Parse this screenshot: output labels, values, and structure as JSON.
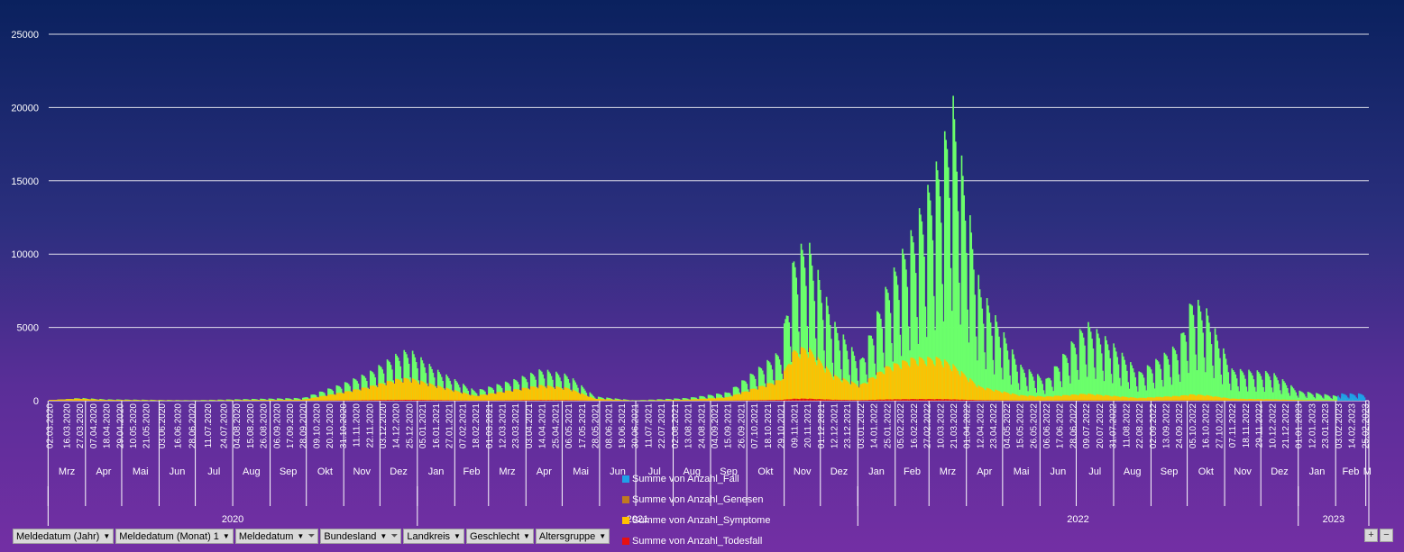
{
  "chart_data": {
    "type": "bar",
    "stacked": true,
    "ylim": [
      0,
      25000
    ],
    "yticks": [
      0,
      5000,
      10000,
      15000,
      20000,
      25000
    ],
    "grid": true,
    "series": [
      {
        "name": "Summe von Anzahl_Fall",
        "color": "#1fa0e8"
      },
      {
        "name": "Summe von Anzahl_Genesen",
        "color": "#6bff6b"
      },
      {
        "name": "Summe von Anzahl_Symptome",
        "color": "#ffc000"
      },
      {
        "name": "Summe von Anzahl_Todesfall",
        "color": "#e81010"
      }
    ],
    "date_range": [
      "02.03.2020",
      "25.02.2023"
    ],
    "envelope": [
      {
        "date": "02.03.2020",
        "genesen": 0,
        "symptome": 50
      },
      {
        "date": "27.03.2020",
        "genesen": 200,
        "symptome": 150
      },
      {
        "date": "18.04.2020",
        "genesen": 100,
        "symptome": 60
      },
      {
        "date": "28.06.2020",
        "genesen": 40,
        "symptome": 20
      },
      {
        "date": "28.09.2020",
        "genesen": 200,
        "symptome": 80
      },
      {
        "date": "31.10.2020",
        "genesen": 1200,
        "symptome": 600
      },
      {
        "date": "22.11.2020",
        "genesen": 2000,
        "symptome": 1000
      },
      {
        "date": "14.12.2020",
        "genesen": 3200,
        "symptome": 1500
      },
      {
        "date": "25.12.2020",
        "genesen": 3600,
        "symptome": 1600
      },
      {
        "date": "16.01.2021",
        "genesen": 2200,
        "symptome": 1100
      },
      {
        "date": "18.02.2021",
        "genesen": 700,
        "symptome": 350
      },
      {
        "date": "23.03.2021",
        "genesen": 1500,
        "symptome": 800
      },
      {
        "date": "14.04.2021",
        "genesen": 2200,
        "symptome": 1100
      },
      {
        "date": "06.05.2021",
        "genesen": 1800,
        "symptome": 900
      },
      {
        "date": "28.05.2021",
        "genesen": 300,
        "symptome": 150
      },
      {
        "date": "30.06.2021",
        "genesen": 30,
        "symptome": 15
      },
      {
        "date": "13.08.2021",
        "genesen": 200,
        "symptome": 80
      },
      {
        "date": "15.09.2021",
        "genesen": 600,
        "symptome": 250
      },
      {
        "date": "29.10.2021",
        "genesen": 3500,
        "symptome": 1500
      },
      {
        "date": "09.11.2021",
        "genesen": 10000,
        "symptome": 3500
      },
      {
        "date": "20.11.2021",
        "genesen": 11300,
        "symptome": 3800
      },
      {
        "date": "12.12.2021",
        "genesen": 5500,
        "symptome": 1800
      },
      {
        "date": "03.01.2022",
        "genesen": 2800,
        "symptome": 1100
      },
      {
        "date": "25.01.2022",
        "genesen": 8000,
        "symptome": 2400
      },
      {
        "date": "16.02.2022",
        "genesen": 12000,
        "symptome": 3000
      },
      {
        "date": "10.03.2022",
        "genesen": 17000,
        "symptome": 3000
      },
      {
        "date": "21.03.2022",
        "genesen": 20800,
        "symptome": 2500
      },
      {
        "date": "12.04.2022",
        "genesen": 8000,
        "symptome": 1000
      },
      {
        "date": "15.05.2022",
        "genesen": 2500,
        "symptome": 400
      },
      {
        "date": "06.06.2022",
        "genesen": 1500,
        "symptome": 300
      },
      {
        "date": "09.07.2022",
        "genesen": 5500,
        "symptome": 500
      },
      {
        "date": "31.07.2022",
        "genesen": 4000,
        "symptome": 350
      },
      {
        "date": "22.08.2022",
        "genesen": 2000,
        "symptome": 200
      },
      {
        "date": "24.09.2022",
        "genesen": 4000,
        "symptome": 350
      },
      {
        "date": "05.10.2022",
        "genesen": 7200,
        "symptome": 450
      },
      {
        "date": "16.10.2022",
        "genesen": 6500,
        "symptome": 400
      },
      {
        "date": "07.11.2022",
        "genesen": 2200,
        "symptome": 150
      },
      {
        "date": "10.12.2022",
        "genesen": 2000,
        "symptome": 100
      },
      {
        "date": "01.01.2023",
        "genesen": 700,
        "symptome": 50
      },
      {
        "date": "14.02.2023",
        "genesen": 200,
        "symptome": 20
      },
      {
        "date": "25.02.2023",
        "genesen": 0,
        "symptome": 0
      }
    ],
    "fall_tail": {
      "from": "03.02.2023",
      "to": "25.02.2023",
      "value": 500
    },
    "xtick_labels": [
      "02.03.2020",
      "16.03.2020",
      "27.03.2020",
      "07.04.2020",
      "18.04.2020",
      "29.04.2020",
      "10.05.2020",
      "21.05.2020",
      "03.06.2020",
      "16.06.2020",
      "28.06.2020",
      "11.07.2020",
      "24.07.2020",
      "04.08.2020",
      "15.08.2020",
      "26.08.2020",
      "06.09.2020",
      "17.09.2020",
      "28.09.2020",
      "09.10.2020",
      "20.10.2020",
      "31.10.2020",
      "11.11.2020",
      "22.11.2020",
      "03.12.2020",
      "14.12.2020",
      "25.12.2020",
      "05.01.2021",
      "16.01.2021",
      "27.01.2021",
      "07.02.2021",
      "18.02.2021",
      "01.03.2021",
      "12.03.2021",
      "23.03.2021",
      "03.04.2021",
      "14.04.2021",
      "25.04.2021",
      "06.05.2021",
      "17.05.2021",
      "28.05.2021",
      "08.06.2021",
      "19.06.2021",
      "30.06.2021",
      "11.07.2021",
      "22.07.2021",
      "02.08.2021",
      "13.08.2021",
      "24.08.2021",
      "04.09.2021",
      "15.09.2021",
      "26.09.2021",
      "07.10.2021",
      "18.10.2021",
      "29.10.2021",
      "09.11.2021",
      "20.11.2021",
      "01.12.2021",
      "12.12.2021",
      "23.12.2021",
      "03.01.2022",
      "14.01.2022",
      "25.01.2022",
      "05.02.2022",
      "16.02.2022",
      "27.02.2022",
      "10.03.2022",
      "21.03.2022",
      "01.04.2022",
      "12.04.2022",
      "23.04.2022",
      "04.05.2022",
      "15.05.2022",
      "26.05.2022",
      "06.06.2022",
      "17.06.2022",
      "28.06.2022",
      "09.07.2022",
      "20.07.2022",
      "31.07.2022",
      "11.08.2022",
      "22.08.2022",
      "02.09.2022",
      "13.09.2022",
      "24.09.2022",
      "05.10.2022",
      "16.10.2022",
      "27.10.2022",
      "07.11.2022",
      "18.11.2022",
      "29.11.2022",
      "10.12.2022",
      "21.12.2022",
      "01.01.2023",
      "12.01.2023",
      "23.01.2023",
      "03.02.2023",
      "14.02.2023",
      "25.02.2023"
    ],
    "months": [
      {
        "label": "Mrz",
        "start": "01.03.2020",
        "end": "31.03.2020"
      },
      {
        "label": "Apr",
        "start": "01.04.2020",
        "end": "30.04.2020"
      },
      {
        "label": "Mai",
        "start": "01.05.2020",
        "end": "31.05.2020"
      },
      {
        "label": "Jun",
        "start": "01.06.2020",
        "end": "30.06.2020"
      },
      {
        "label": "Jul",
        "start": "01.07.2020",
        "end": "31.07.2020"
      },
      {
        "label": "Aug",
        "start": "01.08.2020",
        "end": "31.08.2020"
      },
      {
        "label": "Sep",
        "start": "01.09.2020",
        "end": "30.09.2020"
      },
      {
        "label": "Okt",
        "start": "01.10.2020",
        "end": "31.10.2020"
      },
      {
        "label": "Nov",
        "start": "01.11.2020",
        "end": "30.11.2020"
      },
      {
        "label": "Dez",
        "start": "01.12.2020",
        "end": "31.12.2020"
      },
      {
        "label": "Jan",
        "start": "01.01.2021",
        "end": "31.01.2021"
      },
      {
        "label": "Feb",
        "start": "01.02.2021",
        "end": "28.02.2021"
      },
      {
        "label": "Mrz",
        "start": "01.03.2021",
        "end": "31.03.2021"
      },
      {
        "label": "Apr",
        "start": "01.04.2021",
        "end": "30.04.2021"
      },
      {
        "label": "Mai",
        "start": "01.05.2021",
        "end": "31.05.2021"
      },
      {
        "label": "Jun",
        "start": "01.06.2021",
        "end": "30.06.2021"
      },
      {
        "label": "Jul",
        "start": "01.07.2021",
        "end": "31.07.2021"
      },
      {
        "label": "Aug",
        "start": "01.08.2021",
        "end": "31.08.2021"
      },
      {
        "label": "Sep",
        "start": "01.09.2021",
        "end": "30.09.2021"
      },
      {
        "label": "Okt",
        "start": "01.10.2021",
        "end": "31.10.2021"
      },
      {
        "label": "Nov",
        "start": "01.11.2021",
        "end": "30.11.2021"
      },
      {
        "label": "Dez",
        "start": "01.12.2021",
        "end": "31.12.2021"
      },
      {
        "label": "Jan",
        "start": "01.01.2022",
        "end": "31.01.2022"
      },
      {
        "label": "Feb",
        "start": "01.02.2022",
        "end": "28.02.2022"
      },
      {
        "label": "Mrz",
        "start": "01.03.2022",
        "end": "31.03.2022"
      },
      {
        "label": "Apr",
        "start": "01.04.2022",
        "end": "30.04.2022"
      },
      {
        "label": "Mai",
        "start": "01.05.2022",
        "end": "31.05.2022"
      },
      {
        "label": "Jun",
        "start": "01.06.2022",
        "end": "30.06.2022"
      },
      {
        "label": "Jul",
        "start": "01.07.2022",
        "end": "31.07.2022"
      },
      {
        "label": "Aug",
        "start": "01.08.2022",
        "end": "31.08.2022"
      },
      {
        "label": "Sep",
        "start": "01.09.2022",
        "end": "30.09.2022"
      },
      {
        "label": "Okt",
        "start": "01.10.2022",
        "end": "31.10.2022"
      },
      {
        "label": "Nov",
        "start": "01.11.2022",
        "end": "30.11.2022"
      },
      {
        "label": "Dez",
        "start": "01.12.2022",
        "end": "31.12.2022"
      },
      {
        "label": "Jan",
        "start": "01.01.2023",
        "end": "31.01.2023"
      },
      {
        "label": "Feb",
        "start": "01.02.2023",
        "end": "25.02.2023"
      },
      {
        "label": "M",
        "start": "26.02.2023",
        "end": "28.02.2023"
      }
    ],
    "years": [
      {
        "label": "2020",
        "start": "01.03.2020",
        "end": "31.12.2020"
      },
      {
        "label": "2021",
        "start": "01.01.2021",
        "end": "31.12.2021"
      },
      {
        "label": "2022",
        "start": "01.01.2022",
        "end": "31.12.2022"
      },
      {
        "label": "2023",
        "start": "01.01.2023",
        "end": "28.02.2023"
      }
    ]
  },
  "filters": [
    {
      "label": "Meldedatum (Jahr)",
      "filtered": false
    },
    {
      "label": "Meldedatum (Monat) 1",
      "filtered": false
    },
    {
      "label": "Meldedatum",
      "filtered": true
    },
    {
      "label": "Bundesland",
      "filtered": true
    },
    {
      "label": "Landkreis",
      "filtered": false
    },
    {
      "label": "Geschlecht",
      "filtered": false
    },
    {
      "label": "Altersgruppe",
      "filtered": false
    }
  ],
  "zoom": {
    "plus": "+",
    "minus": "−"
  }
}
